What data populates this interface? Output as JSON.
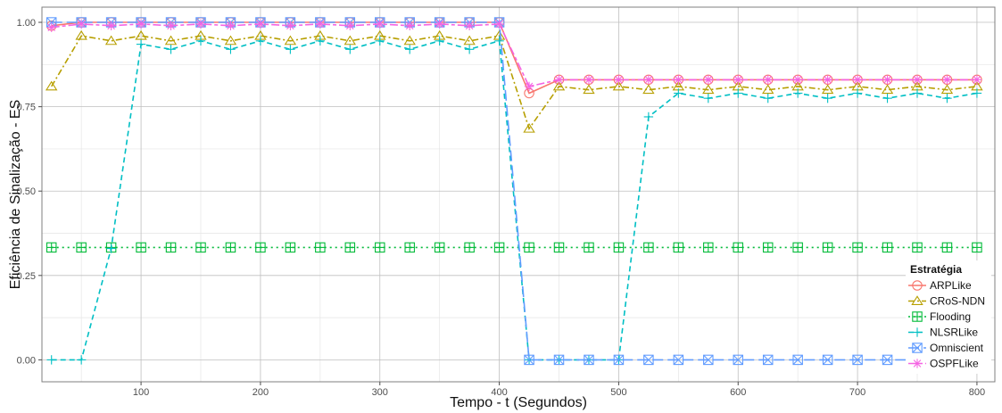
{
  "chart_data": {
    "type": "line",
    "title": "",
    "xlabel": "Tempo - t (Segundos)",
    "ylabel": "Eficiência de Sinalização - ES",
    "xlim": [
      17,
      815
    ],
    "ylim": [
      -0.065,
      1.045
    ],
    "x_ticks": [
      100,
      200,
      300,
      400,
      500,
      600,
      700,
      800
    ],
    "y_ticks": [
      0.0,
      0.25,
      0.5,
      0.75,
      1.0
    ],
    "y_tick_labels": [
      "0.00",
      "0.25",
      "0.50",
      "0.75",
      "1.00"
    ],
    "x_tick_labels": [
      "100",
      "200",
      "300",
      "400",
      "500",
      "600",
      "700",
      "800"
    ],
    "grid": true,
    "background": "#ffffff",
    "grid_major_color": "#bfbfbf",
    "grid_minor_color": "#e5e5e5",
    "legend": {
      "title": "Estratégia",
      "position": "right"
    },
    "x": [
      25,
      50,
      75,
      100,
      125,
      150,
      175,
      200,
      225,
      250,
      275,
      300,
      325,
      350,
      375,
      400,
      425,
      450,
      475,
      500,
      525,
      550,
      575,
      600,
      625,
      650,
      675,
      700,
      725,
      750,
      775,
      800
    ],
    "series": [
      {
        "name": "ARPLike",
        "color": "#F8766D",
        "dash": "solid",
        "marker": "circle",
        "values": [
          0.99,
          1.0,
          1.0,
          1.0,
          1.0,
          1.0,
          1.0,
          1.0,
          1.0,
          1.0,
          1.0,
          1.0,
          1.0,
          1.0,
          1.0,
          1.0,
          0.79,
          0.83,
          0.83,
          0.83,
          0.83,
          0.83,
          0.83,
          0.83,
          0.83,
          0.83,
          0.83,
          0.83,
          0.83,
          0.83,
          0.83,
          0.83
        ]
      },
      {
        "name": "CRoS-NDN",
        "color": "#B79F00",
        "dash": "dashdot",
        "marker": "triangle",
        "values": [
          0.81,
          0.96,
          0.945,
          0.96,
          0.945,
          0.96,
          0.945,
          0.96,
          0.945,
          0.96,
          0.945,
          0.96,
          0.945,
          0.96,
          0.945,
          0.96,
          0.685,
          0.81,
          0.8,
          0.81,
          0.8,
          0.81,
          0.8,
          0.81,
          0.8,
          0.81,
          0.8,
          0.81,
          0.8,
          0.81,
          0.8,
          0.81
        ]
      },
      {
        "name": "Flooding",
        "color": "#00BA38",
        "dash": "dotted",
        "marker": "square-plus",
        "values": [
          0.333,
          0.333,
          0.333,
          0.333,
          0.333,
          0.333,
          0.333,
          0.333,
          0.333,
          0.333,
          0.333,
          0.333,
          0.333,
          0.333,
          0.333,
          0.333,
          0.333,
          0.333,
          0.333,
          0.333,
          0.333,
          0.333,
          0.333,
          0.333,
          0.333,
          0.333,
          0.333,
          0.333,
          0.333,
          0.333,
          0.333,
          0.333
        ]
      },
      {
        "name": "NLSRLike",
        "color": "#00BFC4",
        "dash": "dashed",
        "marker": "plus",
        "values": [
          0.0,
          0.0,
          0.33,
          0.935,
          0.92,
          0.945,
          0.92,
          0.945,
          0.92,
          0.945,
          0.92,
          0.945,
          0.92,
          0.945,
          0.92,
          0.945,
          0.0,
          0.0,
          0.0,
          0.0,
          0.72,
          0.79,
          0.775,
          0.79,
          0.775,
          0.79,
          0.775,
          0.79,
          0.775,
          0.79,
          0.775,
          0.79
        ]
      },
      {
        "name": "Omniscient",
        "color": "#619CFF",
        "dash": "longdash",
        "marker": "square-x",
        "values": [
          1.0,
          1.0,
          1.0,
          1.0,
          1.0,
          1.0,
          1.0,
          1.0,
          1.0,
          1.0,
          1.0,
          1.0,
          1.0,
          1.0,
          1.0,
          1.0,
          0.0,
          0.0,
          0.0,
          0.0,
          0.0,
          0.0,
          0.0,
          0.0,
          0.0,
          0.0,
          0.0,
          0.0,
          0.0,
          0.0,
          0.0,
          0.0
        ]
      },
      {
        "name": "OSPFLike",
        "color": "#F564E3",
        "dash": "twodash",
        "marker": "asterisk",
        "values": [
          0.985,
          0.995,
          0.99,
          0.995,
          0.99,
          0.995,
          0.99,
          0.995,
          0.99,
          0.995,
          0.99,
          0.995,
          0.99,
          0.995,
          0.99,
          0.995,
          0.81,
          0.83,
          0.83,
          0.83,
          0.83,
          0.83,
          0.83,
          0.83,
          0.83,
          0.83,
          0.83,
          0.83,
          0.83,
          0.83,
          0.83,
          0.83
        ]
      }
    ]
  }
}
